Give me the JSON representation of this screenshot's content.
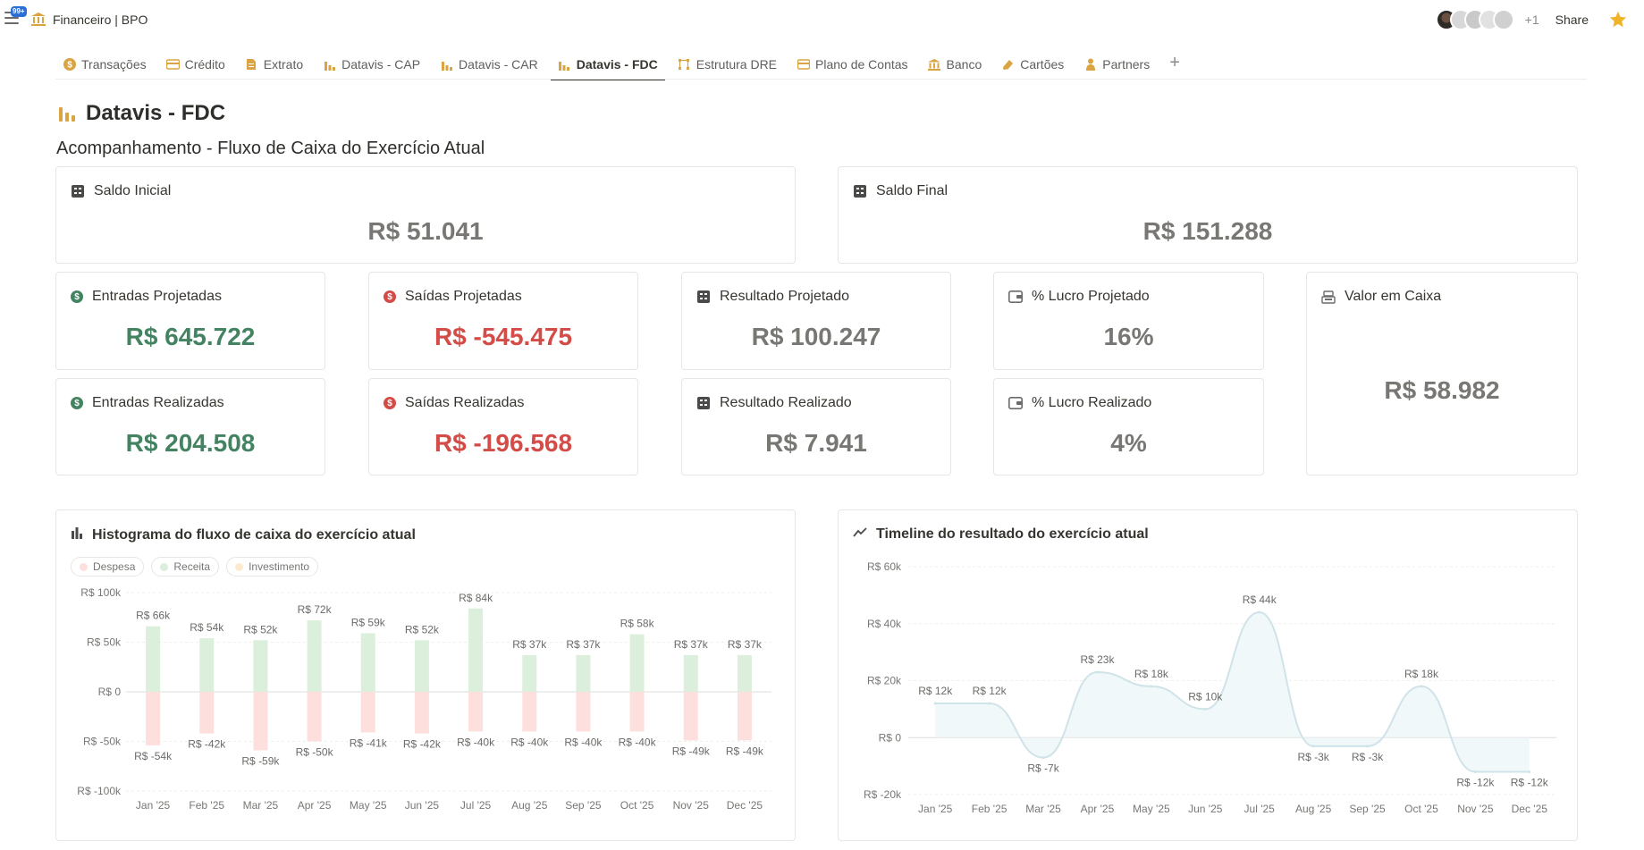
{
  "topbar": {
    "notif_badge": "99+",
    "breadcrumb": "Financeiro | BPO",
    "extra_count": "+1",
    "share_label": "Share"
  },
  "tabs": [
    {
      "label": "Transações",
      "icon": "dollar-coin-icon"
    },
    {
      "label": "Crédito",
      "icon": "credit-card-icon"
    },
    {
      "label": "Extrato",
      "icon": "document-icon"
    },
    {
      "label": "Datavis - CAP",
      "icon": "bar-chart-icon"
    },
    {
      "label": "Datavis - CAR",
      "icon": "bar-chart-icon"
    },
    {
      "label": "Datavis - FDC",
      "icon": "bar-chart-icon",
      "active": true
    },
    {
      "label": "Estrutura DRE",
      "icon": "structure-icon"
    },
    {
      "label": "Plano de Contas",
      "icon": "wallet-icon"
    },
    {
      "label": "Banco",
      "icon": "bank-icon"
    },
    {
      "label": "Cartões",
      "icon": "cards-icon"
    },
    {
      "label": "Partners",
      "icon": "person-icon"
    }
  ],
  "page": {
    "title": "Datavis - FDC",
    "subtitle": "Acompanhamento - Fluxo de Caixa do Exercício Atual"
  },
  "cards": {
    "saldo_inicial": {
      "label": "Saldo Inicial",
      "value": "R$ 51.041"
    },
    "saldo_final": {
      "label": "Saldo Final",
      "value": "R$ 151.288"
    },
    "entradas_projetadas": {
      "label": "Entradas Projetadas",
      "value": "R$ 645.722"
    },
    "saidas_projetadas": {
      "label": "Saídas Projetadas",
      "value": "R$ -545.475"
    },
    "resultado_projetado": {
      "label": "Resultado Projetado",
      "value": "R$ 100.247"
    },
    "lucro_projetado": {
      "label": "% Lucro Projetado",
      "value": "16%"
    },
    "valor_caixa": {
      "label": "Valor em Caixa",
      "value": "R$ 58.982"
    },
    "entradas_realizadas": {
      "label": "Entradas Realizadas",
      "value": "R$ 204.508"
    },
    "saidas_realizadas": {
      "label": "Saídas Realizadas",
      "value": "R$ -196.568"
    },
    "resultado_realizado": {
      "label": "Resultado Realizado",
      "value": "R$ 7.941"
    },
    "lucro_realizado": {
      "label": "% Lucro Realizado",
      "value": "4%"
    }
  },
  "colors": {
    "green": "#448361",
    "red": "#d44c47",
    "receita_bar": "#dcefdc",
    "despesa_bar": "#fde0de",
    "investimento_dot": "#fbeacb",
    "line": "#cfe3e9"
  },
  "chart_data": [
    {
      "type": "bar",
      "title": "Histograma do fluxo de caixa do exercício atual",
      "legend": [
        "Despesa",
        "Receita",
        "Investimento"
      ],
      "categories": [
        "Jan '25",
        "Feb '25",
        "Mar '25",
        "Apr '25",
        "May '25",
        "Jun '25",
        "Jul '25",
        "Aug '25",
        "Sep '25",
        "Oct '25",
        "Nov '25",
        "Dec '25"
      ],
      "series": [
        {
          "name": "Receita",
          "values": [
            66,
            54,
            52,
            72,
            59,
            52,
            84,
            37,
            37,
            58,
            37,
            37
          ],
          "labels": [
            "R$ 66k",
            "R$ 54k",
            "R$ 52k",
            "R$ 72k",
            "R$ 59k",
            "R$ 52k",
            "R$ 84k",
            "R$ 37k",
            "R$ 37k",
            "R$ 58k",
            "R$ 37k",
            "R$ 37k"
          ]
        },
        {
          "name": "Despesa",
          "values": [
            -54,
            -42,
            -59,
            -50,
            -41,
            -42,
            -40,
            -40,
            -40,
            -40,
            -49,
            -49
          ],
          "labels": [
            "R$ -54k",
            "R$ -42k",
            "R$ -59k",
            "R$ -50k",
            "R$ -41k",
            "R$ -42k",
            "R$ -40k",
            "R$ -40k",
            "R$ -40k",
            "R$ -40k",
            "R$ -49k",
            "R$ -49k"
          ]
        }
      ],
      "yticks": [
        "R$ 100k",
        "R$ 50k",
        "R$ 0",
        "R$ -50k",
        "R$ -100k"
      ],
      "ylim": [
        -100,
        100
      ],
      "grid": true,
      "legend_position": "top-left"
    },
    {
      "type": "area",
      "title": "Timeline do resultado do exercício atual",
      "categories": [
        "Jan '25",
        "Feb '25",
        "Mar '25",
        "Apr '25",
        "May '25",
        "Jun '25",
        "Jul '25",
        "Aug '25",
        "Sep '25",
        "Oct '25",
        "Nov '25",
        "Dec '25"
      ],
      "values": [
        12,
        12,
        -7,
        23,
        18,
        10,
        44,
        -3,
        -3,
        18,
        -12,
        -12
      ],
      "labels": [
        "R$ 12k",
        "R$ 12k",
        "R$ -7k",
        "R$ 23k",
        "R$ 18k",
        "R$ 10k",
        "R$ 44k",
        "R$ -3k",
        "R$ -3k",
        "R$ 18k",
        "R$ -12k",
        "R$ -12k"
      ],
      "yticks": [
        "R$ 60k",
        "R$ 40k",
        "R$ 20k",
        "R$ 0",
        "R$ -20k"
      ],
      "ylim": [
        -20,
        60
      ],
      "grid": true
    }
  ]
}
